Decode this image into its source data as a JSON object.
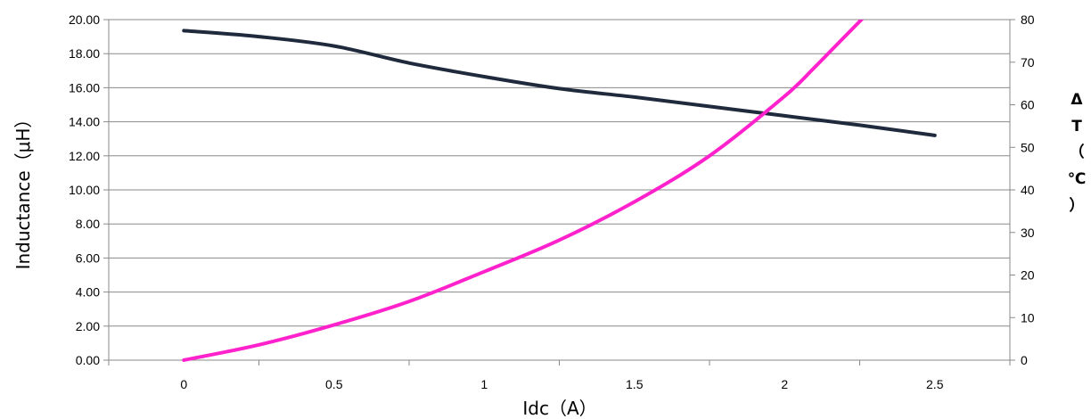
{
  "chart_data": {
    "type": "line",
    "title": "",
    "xlabel": "Idc（A）",
    "ylabel": "Inductance（μH）",
    "y2label_lines": [
      "Δ",
      "T",
      "（",
      "℃",
      "）"
    ],
    "xlim": [
      -0.25,
      2.75
    ],
    "ylim": [
      0,
      20
    ],
    "y2lim": [
      0,
      80
    ],
    "grid": true,
    "legend": "none",
    "x_ticks": [
      "0",
      "0.5",
      "1",
      "1.5",
      "2",
      "2.5"
    ],
    "x_tick_values": [
      0,
      0.5,
      1,
      1.5,
      2,
      2.5
    ],
    "y_ticks": [
      "0.00",
      "2.00",
      "4.00",
      "6.00",
      "8.00",
      "10.00",
      "12.00",
      "14.00",
      "16.00",
      "18.00",
      "20.00"
    ],
    "y_tick_values": [
      0,
      2,
      4,
      6,
      8,
      10,
      12,
      14,
      16,
      18,
      20
    ],
    "y2_ticks": [
      "0",
      "10",
      "20",
      "30",
      "40",
      "50",
      "60",
      "70",
      "80"
    ],
    "y2_tick_values": [
      0,
      10,
      20,
      30,
      40,
      50,
      60,
      70,
      80
    ],
    "series": [
      {
        "axis": "left",
        "color": "#1f2a3d",
        "x": [
          0,
          0.25,
          0.5,
          0.75,
          1.0,
          1.25,
          1.5,
          1.75,
          2.0,
          2.25,
          2.5
        ],
        "values": [
          19.35,
          19.0,
          18.45,
          17.45,
          16.65,
          15.95,
          15.45,
          14.9,
          14.35,
          13.8,
          13.2
        ]
      },
      {
        "axis": "right",
        "color": "#ff22cc",
        "x": [
          0,
          0.25,
          0.5,
          0.75,
          1.0,
          1.25,
          1.5,
          1.75,
          2.0,
          2.1,
          2.2,
          2.27
        ],
        "values": [
          0,
          3.6,
          8.3,
          13.8,
          20.8,
          28.2,
          37.2,
          48.0,
          62.0,
          68.8,
          76.0,
          81.0
        ]
      }
    ]
  }
}
